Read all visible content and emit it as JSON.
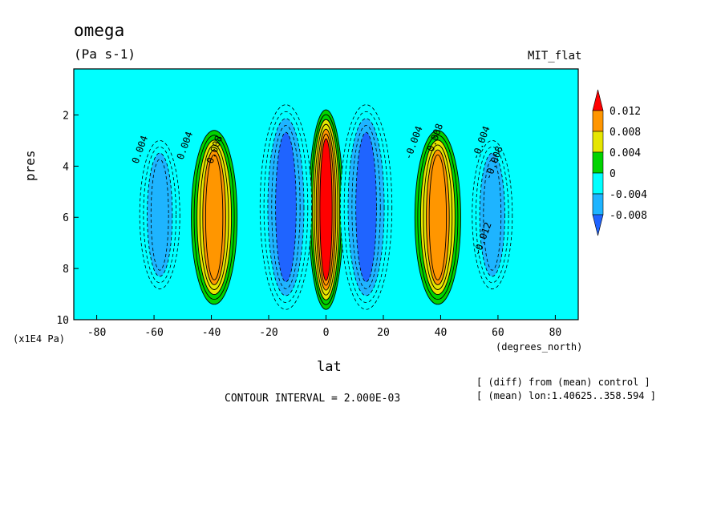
{
  "header": {
    "title": "omega",
    "units": "(Pa s-1)",
    "experiment": "MIT_flat"
  },
  "chart_data": {
    "type": "heatmap",
    "title": "omega",
    "subtitle": "(Pa s-1)",
    "xlabel": "lat",
    "xlabel_unit": "(degrees_north)",
    "ylabel": "pres",
    "ylabel_unit": "(x1E4 Pa)",
    "xlim": [
      -88,
      88
    ],
    "ylim": [
      0.2,
      10
    ],
    "y_inverted": true,
    "x_ticks": [
      -80,
      -60,
      -40,
      -20,
      0,
      20,
      40,
      60,
      80
    ],
    "x_tick_labels": [
      "-80",
      "-60",
      "-40",
      "-20",
      "0",
      "20",
      "40",
      "60",
      "80"
    ],
    "y_ticks": [
      2,
      4,
      6,
      8,
      10
    ],
    "y_tick_labels": [
      "2",
      "4",
      "6",
      "8",
      "10"
    ],
    "contour_interval": 0.002,
    "colorbar": {
      "labels": [
        "0.012",
        "0.008",
        "0.004",
        "0",
        "-0.004",
        "-0.008"
      ],
      "colors": [
        "#1f64ff",
        "#1eb4ff",
        "#00ffff",
        "#00d400",
        "#e6e600",
        "#ff9600",
        "#ff0000"
      ],
      "placement": "right"
    },
    "contour_labels": [
      "0.004",
      "0.004",
      "-0.004",
      "-0.004",
      "-0.012",
      "0.008",
      "0.008",
      "-0.008"
    ],
    "features": [
      {
        "lat_center": 0,
        "lat_half_width": 6,
        "p_top": 1.8,
        "p_bottom": 9.6,
        "value": 0.014
      },
      {
        "lat_center": -39,
        "lat_half_width": 8,
        "p_top": 2.6,
        "p_bottom": 9.4,
        "value": 0.012
      },
      {
        "lat_center": 39,
        "lat_half_width": 8,
        "p_top": 2.6,
        "p_bottom": 9.4,
        "value": 0.012
      },
      {
        "lat_center": -14,
        "lat_half_width": 9,
        "p_top": 1.6,
        "p_bottom": 9.6,
        "value": -0.01
      },
      {
        "lat_center": 14,
        "lat_half_width": 9,
        "p_top": 1.6,
        "p_bottom": 9.6,
        "value": -0.01
      },
      {
        "lat_center": -58,
        "lat_half_width": 7,
        "p_top": 3.0,
        "p_bottom": 8.8,
        "value": -0.008
      },
      {
        "lat_center": 58,
        "lat_half_width": 7,
        "p_top": 3.0,
        "p_bottom": 8.8,
        "value": -0.008
      }
    ]
  },
  "footer": {
    "contour_interval_text": "CONTOUR INTERVAL = 2.000E-03",
    "note_line1": "[ (diff) from (mean) control ]",
    "note_line2": "[ (mean) lon:1.40625..358.594 ]"
  }
}
